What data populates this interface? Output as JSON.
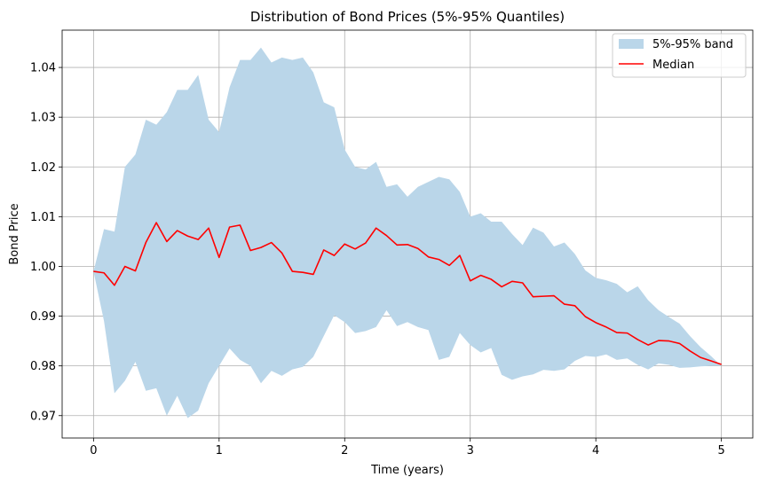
{
  "chart_data": {
    "type": "area",
    "title": "Distribution of Bond Prices (5%-95% Quantiles)",
    "xlabel": "Time (years)",
    "ylabel": "Bond Price",
    "xlim": [
      -0.25,
      5.25
    ],
    "ylim": [
      0.9655,
      1.0475
    ],
    "x_ticks": [
      0,
      1,
      2,
      3,
      4,
      5
    ],
    "x_tick_labels": [
      "0",
      "1",
      "2",
      "3",
      "4",
      "5"
    ],
    "y_ticks": [
      0.97,
      0.98,
      0.99,
      1.0,
      1.01,
      1.02,
      1.03,
      1.04
    ],
    "y_tick_labels": [
      "0.97",
      "0.98",
      "0.99",
      "1.00",
      "1.01",
      "1.02",
      "1.03",
      "1.04"
    ],
    "grid": true,
    "legend_position": "top-right",
    "x": [
      0,
      0.0833,
      0.1667,
      0.25,
      0.3333,
      0.4167,
      0.5,
      0.5833,
      0.6667,
      0.75,
      0.8333,
      0.9167,
      1.0,
      1.0833,
      1.1667,
      1.25,
      1.3333,
      1.4167,
      1.5,
      1.5833,
      1.6667,
      1.75,
      1.8333,
      1.9167,
      2.0,
      2.0833,
      2.1667,
      2.25,
      2.3333,
      2.4167,
      2.5,
      2.5833,
      2.6667,
      2.75,
      2.8333,
      2.9167,
      3.0,
      3.0833,
      3.1667,
      3.25,
      3.3333,
      3.4167,
      3.5,
      3.5833,
      3.6667,
      3.75,
      3.8333,
      3.9167,
      4.0,
      4.0833,
      4.1667,
      4.25,
      4.3333,
      4.4167,
      4.5,
      4.5833,
      4.6667,
      4.75,
      4.8333,
      4.9167,
      5.0
    ],
    "series": [
      {
        "name": "5%-95% band",
        "kind": "band",
        "color": "#bad6e9",
        "upper": [
          0.999,
          1.0075,
          1.007,
          1.02,
          1.0225,
          1.0295,
          1.0285,
          1.031,
          1.0355,
          1.0355,
          1.0385,
          1.0295,
          1.027,
          1.036,
          1.0415,
          1.0415,
          1.044,
          1.041,
          1.042,
          1.0415,
          1.042,
          1.039,
          1.033,
          1.032,
          1.0235,
          1.02,
          1.0195,
          1.021,
          1.016,
          1.0165,
          1.014,
          1.016,
          1.017,
          1.018,
          1.0175,
          1.015,
          1.01,
          1.0107,
          1.009,
          1.009,
          1.0065,
          1.0043,
          1.0078,
          1.0068,
          1.004,
          1.0048,
          1.0025,
          0.9992,
          0.9977,
          0.9972,
          0.9965,
          0.9948,
          0.996,
          0.9932,
          0.9912,
          0.9898,
          0.9885,
          0.986,
          0.9838,
          0.982,
          0.98
        ],
        "lower": [
          0.999,
          0.989,
          0.9745,
          0.977,
          0.9808,
          0.975,
          0.9755,
          0.97,
          0.974,
          0.9695,
          0.971,
          0.9765,
          0.98,
          0.9835,
          0.9812,
          0.98,
          0.9765,
          0.979,
          0.978,
          0.9793,
          0.9798,
          0.9818,
          0.986,
          0.9902,
          0.9888,
          0.9866,
          0.987,
          0.9878,
          0.9912,
          0.988,
          0.9888,
          0.9878,
          0.9872,
          0.9812,
          0.9818,
          0.9866,
          0.9842,
          0.9827,
          0.9836,
          0.9782,
          0.9772,
          0.9779,
          0.9783,
          0.9792,
          0.979,
          0.9793,
          0.981,
          0.982,
          0.9818,
          0.9823,
          0.9812,
          0.9815,
          0.9802,
          0.9793,
          0.9805,
          0.9802,
          0.9796,
          0.9797,
          0.9799,
          0.98,
          0.98
        ]
      },
      {
        "name": "Median",
        "kind": "line",
        "color": "#ff0000",
        "values": [
          0.999,
          0.9987,
          0.9962,
          1.0,
          0.9991,
          1.0048,
          1.0088,
          1.005,
          1.0072,
          1.0061,
          1.0054,
          1.0077,
          1.0018,
          1.0079,
          1.0083,
          1.0032,
          1.0038,
          1.0048,
          1.0027,
          0.999,
          0.9988,
          0.9984,
          1.0033,
          1.0022,
          1.0045,
          1.0035,
          1.0047,
          1.0077,
          1.0062,
          1.0043,
          1.0044,
          1.0036,
          1.0019,
          1.0014,
          1.0002,
          1.0022,
          0.9971,
          0.9982,
          0.9974,
          0.9959,
          0.997,
          0.9967,
          0.9939,
          0.994,
          0.9941,
          0.9924,
          0.9921,
          0.9899,
          0.9887,
          0.9878,
          0.9867,
          0.9866,
          0.9853,
          0.9842,
          0.9851,
          0.985,
          0.9845,
          0.983,
          0.9817,
          0.981,
          0.9803
        ]
      }
    ]
  }
}
